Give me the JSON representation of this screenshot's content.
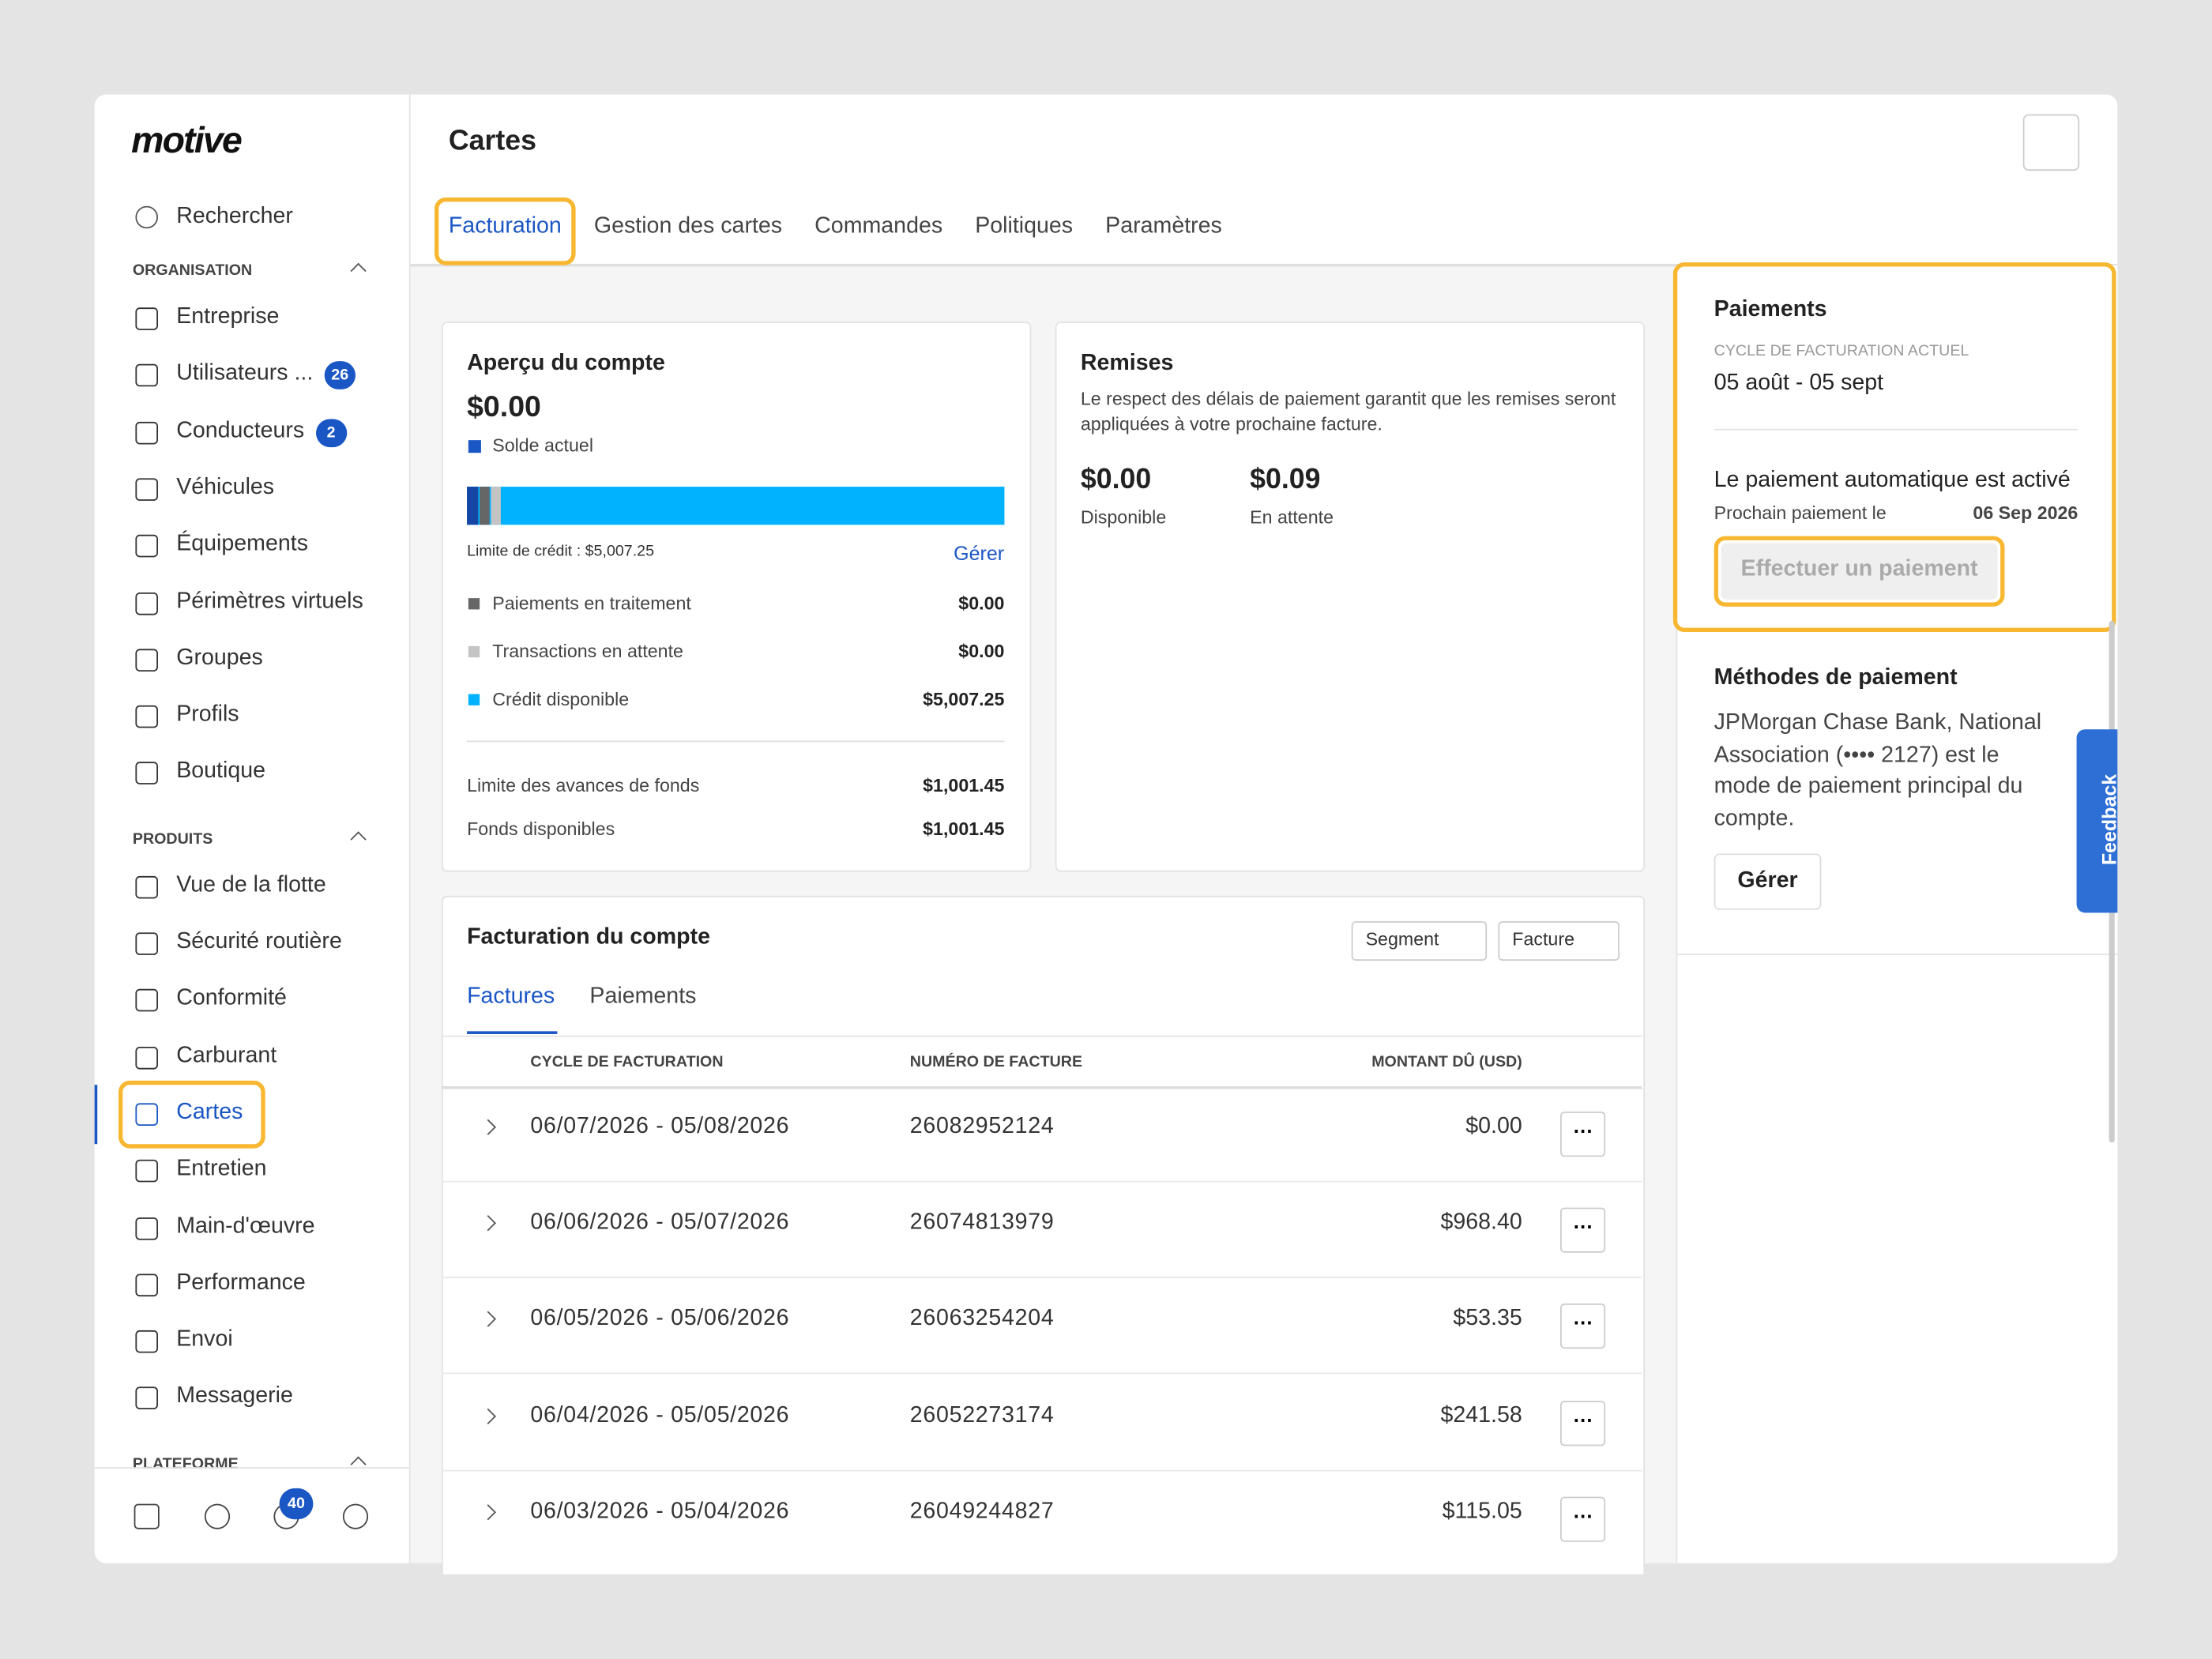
{
  "sidebar": {
    "logo": "motive",
    "search": "Rechercher",
    "sections": [
      {
        "title": "ORGANISATION",
        "items": [
          {
            "label": "Entreprise"
          },
          {
            "label": "Utilisateurs ...",
            "badge": 26
          },
          {
            "label": "Conducteurs",
            "badge": 2
          },
          {
            "label": "Véhicules"
          },
          {
            "label": "Équipements"
          },
          {
            "label": "Périmètres virtuels"
          },
          {
            "label": "Groupes"
          },
          {
            "label": "Profils"
          },
          {
            "label": "Boutique"
          }
        ]
      },
      {
        "title": "PRODUITS",
        "items": [
          {
            "label": "Vue de la flotte"
          },
          {
            "label": "Sécurité routière"
          },
          {
            "label": "Conformité"
          },
          {
            "label": "Carburant"
          },
          {
            "label": "Cartes",
            "active": true
          },
          {
            "label": "Entretien"
          },
          {
            "label": "Main-d'œuvre"
          },
          {
            "label": "Performance"
          },
          {
            "label": "Envoi"
          },
          {
            "label": "Messagerie"
          }
        ]
      },
      {
        "title": "PLATEFORME",
        "items": []
      }
    ],
    "notifications_badge": 40
  },
  "header": {
    "title": "Cartes",
    "tabs": [
      "Facturation",
      "Gestion des cartes",
      "Commandes",
      "Politiques",
      "Paramètres"
    ]
  },
  "account_overview": {
    "title": "Aperçu du compte",
    "balance": "$0.00",
    "balance_label": "Solde actuel",
    "credit_limit": "Limite de crédit : $5,007.25",
    "manage": "Gérer",
    "rows": [
      {
        "label": "Paiements en traitement",
        "value": "$0.00"
      },
      {
        "label": "Transactions en attente",
        "value": "$0.00"
      },
      {
        "label": "Crédit disponible",
        "value": "$5,007.25"
      }
    ],
    "advances": [
      {
        "label": "Limite des avances de fonds",
        "value": "$1,001.45"
      },
      {
        "label": "Fonds disponibles",
        "value": "$1,001.45"
      }
    ]
  },
  "discounts": {
    "title": "Remises",
    "text": "Le respect des délais de paiement garantit que les remises seront appliquées à votre prochaine facture.",
    "available": "$0.00",
    "available_label": "Disponible",
    "pending": "$0.09",
    "pending_label": "En attente"
  },
  "billing": {
    "title": "Facturation du compte",
    "filters": [
      "Segment",
      "Facture"
    ],
    "tabs": [
      "Factures",
      "Paiements"
    ],
    "columns": [
      "CYCLE DE FACTURATION",
      "NUMÉRO DE FACTURE",
      "MONTANT DÛ (USD)"
    ],
    "rows": [
      [
        "06/07/2026 - 05/08/2026",
        "26082952124",
        "$0.00"
      ],
      [
        "06/06/2026 - 05/07/2026",
        "26074813979",
        "$968.40"
      ],
      [
        "06/05/2026 - 05/06/2026",
        "26063254204",
        "$53.35"
      ],
      [
        "06/04/2026 - 05/05/2026",
        "26052273174",
        "$241.58"
      ],
      [
        "06/03/2026 - 05/04/2026",
        "26049244827",
        "$115.05"
      ]
    ]
  },
  "payments": {
    "title": "Paiements",
    "cycle_label": "CYCLE DE FACTURATION ACTUEL",
    "cycle": "05 août - 05 sept",
    "autopay": "Le paiement automatique est activé",
    "next_label": "Prochain paiement le",
    "next_date": "06 Sep 2026",
    "pay_button": "Effectuer un paiement"
  },
  "payment_methods": {
    "title": "Méthodes de paiement",
    "text": "JPMorgan Chase Bank, National Association (•••• 2127) est le mode de paiement principal du compte.",
    "manage": "Gérer"
  },
  "feedback": "Feedback"
}
